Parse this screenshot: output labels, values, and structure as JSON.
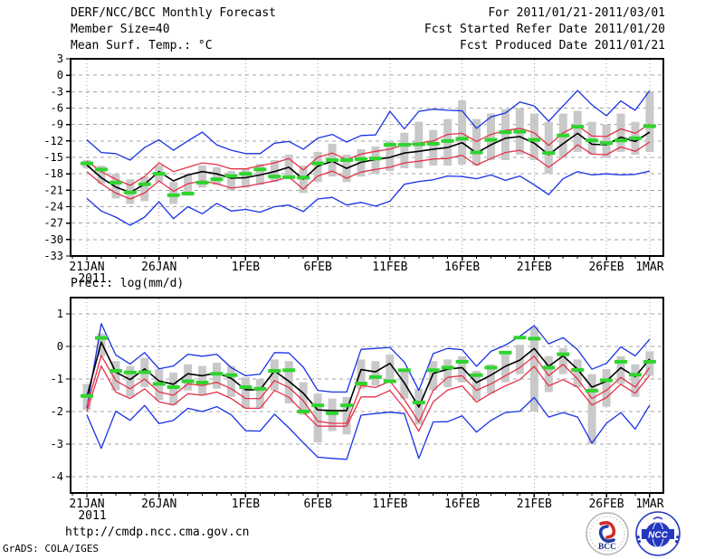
{
  "header": {
    "left": [
      "DERF/NCC/BCC Monthly Forecast",
      "Member Size=40",
      "Mean Surf. Temp.: °C"
    ],
    "right": [
      "For 2011/01/21-2011/03/01",
      "Fcst Started Refer Date 2011/01/20",
      "Fcst Produced Date 2011/01/21"
    ]
  },
  "footer": {
    "url": "http://cmdp.ncc.cma.gov.cn",
    "credit": "GrADS: COLA/IGES",
    "logo_bcc_text": "BCC",
    "logo_ncc_text": "NCC"
  },
  "colors": {
    "blue": "#1832e6",
    "red": "#e43248",
    "green": "#2fd42f",
    "black": "#000000",
    "bar": "#c9c9c9",
    "grid": "#a3a3a3",
    "frame": "#000000",
    "text": "#000000"
  },
  "chart_data": [
    {
      "type": "line",
      "title": "Mean Surf. Temp.: °C",
      "xlabel": "",
      "ylabel": "",
      "ylim": [
        3,
        -33
      ],
      "grid": true,
      "y_ticks": [
        3,
        0,
        -3,
        -6,
        -9,
        -12,
        -15,
        -18,
        -21,
        -24,
        -27,
        -30,
        -33
      ],
      "x_tick_labels": [
        {
          "label": "21JAN",
          "day": 0,
          "sub": "2011"
        },
        {
          "label": "26JAN",
          "day": 5
        },
        {
          "label": "1FEB",
          "day": 11
        },
        {
          "label": "6FEB",
          "day": 16
        },
        {
          "label": "11FEB",
          "day": 21
        },
        {
          "label": "16FEB",
          "day": 26
        },
        {
          "label": "21FEB",
          "day": 31
        },
        {
          "label": "26FEB",
          "day": 36
        },
        {
          "label": "1MAR",
          "day": 39
        }
      ],
      "bars": {
        "top": [
          -15.5,
          -16.5,
          -18.0,
          -19.0,
          -18.5,
          -16.5,
          -19.5,
          -18.0,
          -16.5,
          -16.8,
          -17.5,
          -17.0,
          -16.2,
          -15.5,
          -14.5,
          -16.5,
          -14.0,
          -12.5,
          -14.5,
          -13.5,
          -13.0,
          -12.0,
          -10.5,
          -8.5,
          -10.0,
          -8.0,
          -4.6,
          -8.0,
          -7.0,
          -6.2,
          -6.0,
          -7.0,
          -8.5,
          -7.0,
          -6.5,
          -8.5,
          -9.0,
          -7.0,
          -8.5,
          -3.0
        ],
        "bottom": [
          -17.0,
          -19.8,
          -22.5,
          -23.5,
          -23.0,
          -19.5,
          -23.5,
          -22.0,
          -20.5,
          -20.0,
          -21.0,
          -20.5,
          -20.0,
          -19.5,
          -19.0,
          -21.5,
          -19.5,
          -18.5,
          -19.5,
          -18.5,
          -18.0,
          -17.5,
          -17.0,
          -17.0,
          -16.5,
          -16.5,
          -16.3,
          -16.5,
          -15.5,
          -15.5,
          -14.5,
          -15.5,
          -18.0,
          -15.0,
          -14.0,
          -14.5,
          -15.0,
          -14.0,
          -14.5,
          -14.0
        ]
      },
      "series": [
        {
          "name": "envelope-max",
          "color": "blue",
          "style": "line",
          "values": [
            -11.8,
            -14.1,
            -14.3,
            -15.5,
            -13.2,
            -11.8,
            -13.7,
            -12.0,
            -10.4,
            -12.7,
            -13.7,
            -14.3,
            -14.3,
            -12.4,
            -12.1,
            -13.5,
            -11.5,
            -10.8,
            -12.2,
            -11.0,
            -10.9,
            -6.6,
            -9.8,
            -6.6,
            -6.2,
            -6.4,
            -6.5,
            -9.7,
            -7.6,
            -6.9,
            -4.9,
            -5.6,
            -8.4,
            -5.6,
            -2.8,
            -5.4,
            -7.4,
            -4.7,
            -6.4,
            -2.8
          ]
        },
        {
          "name": "envelope-min",
          "color": "blue",
          "style": "line",
          "values": [
            -22.5,
            -24.8,
            -25.9,
            -27.4,
            -25.9,
            -23.1,
            -26.2,
            -24.0,
            -25.3,
            -23.4,
            -24.8,
            -24.5,
            -25.0,
            -24.0,
            -23.7,
            -24.9,
            -22.6,
            -22.3,
            -23.7,
            -23.2,
            -23.9,
            -23.0,
            -19.9,
            -19.4,
            -19.1,
            -18.4,
            -18.5,
            -18.9,
            -18.2,
            -19.2,
            -18.4,
            -20.0,
            -21.8,
            -18.9,
            -17.6,
            -18.2,
            -18.0,
            -18.2,
            -18.1,
            -17.5
          ]
        },
        {
          "name": "upper-percentile",
          "color": "red",
          "style": "line",
          "values": [
            -15.7,
            -17.6,
            -19.0,
            -20.1,
            -18.5,
            -16.0,
            -17.6,
            -16.8,
            -16.0,
            -16.3,
            -17.1,
            -17.1,
            -16.5,
            -16.0,
            -15.2,
            -17.3,
            -15.0,
            -14.2,
            -15.4,
            -14.4,
            -13.9,
            -13.5,
            -12.7,
            -12.4,
            -12.0,
            -10.8,
            -10.6,
            -12.1,
            -10.8,
            -10.1,
            -9.7,
            -10.5,
            -12.8,
            -10.5,
            -9.2,
            -11.1,
            -11.2,
            -9.8,
            -10.6,
            -8.9
          ]
        },
        {
          "name": "lower-percentile",
          "color": "red",
          "style": "line",
          "values": [
            -17.6,
            -19.8,
            -21.5,
            -22.6,
            -21.5,
            -19.3,
            -21.2,
            -19.8,
            -19.3,
            -19.8,
            -20.6,
            -20.3,
            -19.8,
            -19.3,
            -18.6,
            -20.8,
            -18.4,
            -17.5,
            -18.8,
            -17.7,
            -17.2,
            -16.8,
            -16.0,
            -15.7,
            -15.3,
            -15.2,
            -14.6,
            -16.4,
            -15.2,
            -14.1,
            -13.7,
            -14.9,
            -16.8,
            -14.9,
            -12.7,
            -14.4,
            -14.5,
            -13.1,
            -13.9,
            -12.2
          ]
        },
        {
          "name": "ensemble-mean",
          "color": "black",
          "style": "line",
          "values": [
            -16.4,
            -18.7,
            -20.4,
            -21.4,
            -19.9,
            -17.6,
            -19.3,
            -18.2,
            -17.6,
            -18.0,
            -18.8,
            -18.7,
            -18.2,
            -17.6,
            -16.8,
            -19.0,
            -16.6,
            -15.7,
            -17.0,
            -15.9,
            -15.4,
            -15.0,
            -14.2,
            -13.9,
            -13.5,
            -13.2,
            -12.3,
            -14.2,
            -12.7,
            -11.5,
            -11.2,
            -12.4,
            -14.5,
            -12.5,
            -10.6,
            -12.6,
            -12.7,
            -11.3,
            -12.1,
            -10.4
          ]
        },
        {
          "name": "green-dash-marks",
          "color": "green",
          "style": "dash",
          "values": [
            -16.1,
            -17.2,
            -19.6,
            -21.4,
            -19.9,
            -18.0,
            -21.9,
            -21.6,
            -19.6,
            -19.0,
            -18.4,
            -18.0,
            -17.2,
            -18.5,
            -18.6,
            -18.7,
            -16.1,
            -15.5,
            -15.5,
            -15.3,
            -15.2,
            -12.7,
            -12.7,
            -12.6,
            -12.5,
            -12.0,
            -11.6,
            -14.1,
            -11.8,
            -10.4,
            -10.3,
            -11.8,
            -14.2,
            -11.0,
            -9.4,
            -11.9,
            -12.4,
            -11.9,
            -11.5,
            -9.3
          ]
        }
      ]
    },
    {
      "type": "line",
      "title": "Prec.: log(mm/d)",
      "xlabel": "",
      "ylabel": "",
      "ylim": [
        1.5,
        -4.5
      ],
      "grid": true,
      "y_ticks": [
        1,
        0,
        -1,
        -2,
        -3,
        -4
      ],
      "x_tick_labels": [
        {
          "label": "21JAN",
          "day": 0,
          "sub": "2011"
        },
        {
          "label": "26JAN",
          "day": 5
        },
        {
          "label": "1FEB",
          "day": 11
        },
        {
          "label": "6FEB",
          "day": 16
        },
        {
          "label": "11FEB",
          "day": 21
        },
        {
          "label": "16FEB",
          "day": 26
        },
        {
          "label": "21FEB",
          "day": 31
        },
        {
          "label": "26FEB",
          "day": 36
        },
        {
          "label": "1MAR",
          "day": 39
        }
      ],
      "bars": {
        "top": [
          -1.15,
          0.4,
          -0.45,
          -0.6,
          -0.35,
          -0.7,
          -0.8,
          -0.55,
          -0.6,
          -0.5,
          -0.6,
          -0.95,
          -1.0,
          -0.4,
          -0.45,
          -1.1,
          -1.45,
          -1.6,
          -1.55,
          -0.4,
          -0.45,
          -0.25,
          -0.7,
          -1.3,
          -0.45,
          -0.4,
          -0.3,
          -0.75,
          -0.55,
          -0.25,
          0.05,
          0.6,
          -0.3,
          -0.05,
          -0.4,
          -0.85,
          -0.7,
          -0.3,
          -0.55,
          -0.15
        ],
        "bottom": [
          -1.95,
          -0.3,
          -1.35,
          -1.55,
          -1.25,
          -1.65,
          -1.8,
          -1.35,
          -1.5,
          -1.3,
          -1.55,
          -1.9,
          -1.9,
          -1.35,
          -1.75,
          -2.1,
          -2.95,
          -2.6,
          -2.7,
          -1.3,
          -1.2,
          -1.1,
          -1.6,
          -2.4,
          -1.35,
          -1.25,
          -1.1,
          -1.65,
          -1.45,
          -1.1,
          -0.85,
          -2.0,
          -1.4,
          -0.85,
          -1.25,
          -3.0,
          -1.85,
          -1.15,
          -1.55,
          -0.9
        ]
      },
      "series": [
        {
          "name": "envelope-max",
          "color": "blue",
          "style": "line",
          "values": [
            -1.9,
            0.7,
            -0.26,
            -0.54,
            -0.19,
            -0.69,
            -0.6,
            -0.24,
            -0.3,
            -0.24,
            -0.65,
            -0.9,
            -0.85,
            -0.19,
            -0.2,
            -0.64,
            -1.35,
            -1.4,
            -1.4,
            -0.09,
            -0.06,
            -0.03,
            -0.48,
            -1.35,
            -0.22,
            -0.06,
            -0.1,
            -0.61,
            -0.15,
            0.04,
            0.31,
            0.64,
            0.08,
            0.27,
            -0.1,
            -0.7,
            -0.52,
            -0.01,
            -0.29,
            0.22
          ]
        },
        {
          "name": "envelope-min",
          "color": "blue",
          "style": "line",
          "values": [
            -2.1,
            -3.13,
            -1.99,
            -2.27,
            -1.81,
            -2.37,
            -2.27,
            -1.9,
            -2.0,
            -1.85,
            -2.1,
            -2.59,
            -2.6,
            -2.08,
            -2.5,
            -2.96,
            -3.4,
            -3.44,
            -3.47,
            -2.11,
            -2.06,
            -2.02,
            -2.06,
            -3.44,
            -2.32,
            -2.31,
            -2.13,
            -2.63,
            -2.27,
            -2.03,
            -1.99,
            -1.57,
            -2.17,
            -2.03,
            -2.17,
            -2.97,
            -2.36,
            -2.03,
            -2.54,
            -1.8
          ]
        },
        {
          "name": "upper-percentile",
          "color": "red",
          "style": "line",
          "values": [
            -1.85,
            -0.28,
            -1.05,
            -1.3,
            -1.0,
            -1.4,
            -1.5,
            -1.15,
            -1.2,
            -1.1,
            -1.3,
            -1.6,
            -1.6,
            -1.05,
            -1.26,
            -1.67,
            -2.3,
            -2.36,
            -2.36,
            -1.2,
            -1.26,
            -1.07,
            -1.63,
            -2.32,
            -1.35,
            -0.95,
            -0.9,
            -1.35,
            -1.15,
            -0.9,
            -0.65,
            -0.3,
            -0.9,
            -0.55,
            -1.0,
            -1.6,
            -1.35,
            -0.95,
            -1.25,
            -0.65
          ]
        },
        {
          "name": "lower-percentile",
          "color": "red",
          "style": "line",
          "values": [
            -2.0,
            -0.6,
            -1.4,
            -1.6,
            -1.3,
            -1.7,
            -1.8,
            -1.45,
            -1.5,
            -1.4,
            -1.6,
            -1.9,
            -1.9,
            -1.35,
            -1.56,
            -2.02,
            -2.45,
            -2.45,
            -2.45,
            -1.55,
            -1.55,
            -1.35,
            -1.9,
            -2.6,
            -1.7,
            -1.34,
            -1.21,
            -1.71,
            -1.44,
            -1.21,
            -1.02,
            -0.61,
            -1.21,
            -1.02,
            -1.25,
            -1.8,
            -1.57,
            -1.16,
            -1.44,
            -0.88
          ]
        },
        {
          "name": "ensemble-mean",
          "color": "black",
          "style": "line",
          "values": [
            -1.55,
            0.13,
            -0.79,
            -1.02,
            -0.69,
            -1.06,
            -1.16,
            -0.84,
            -0.9,
            -0.81,
            -0.98,
            -1.33,
            -1.33,
            -0.75,
            -1.07,
            -1.44,
            -1.95,
            -1.97,
            -1.97,
            -0.71,
            -0.78,
            -0.52,
            -1.12,
            -1.86,
            -0.83,
            -0.7,
            -0.65,
            -1.11,
            -0.88,
            -0.61,
            -0.42,
            -0.06,
            -0.61,
            -0.29,
            -0.7,
            -1.25,
            -1.07,
            -0.65,
            -0.93,
            -0.38
          ]
        },
        {
          "name": "green-dash-marks",
          "color": "green",
          "style": "dash",
          "values": [
            -1.52,
            0.26,
            -0.75,
            -0.8,
            -0.79,
            -1.15,
            -1.25,
            -1.07,
            -1.11,
            -0.84,
            -0.88,
            -1.25,
            -1.3,
            -0.75,
            -0.73,
            -2.0,
            -1.81,
            -2.05,
            -1.81,
            -1.14,
            -0.94,
            -1.07,
            -0.73,
            -1.72,
            -0.73,
            -0.65,
            -0.47,
            -0.88,
            -0.65,
            -0.19,
            0.27,
            0.24,
            -0.65,
            -0.24,
            -0.72,
            -1.36,
            -1.04,
            -0.47,
            -0.87,
            -0.47
          ]
        }
      ]
    }
  ]
}
